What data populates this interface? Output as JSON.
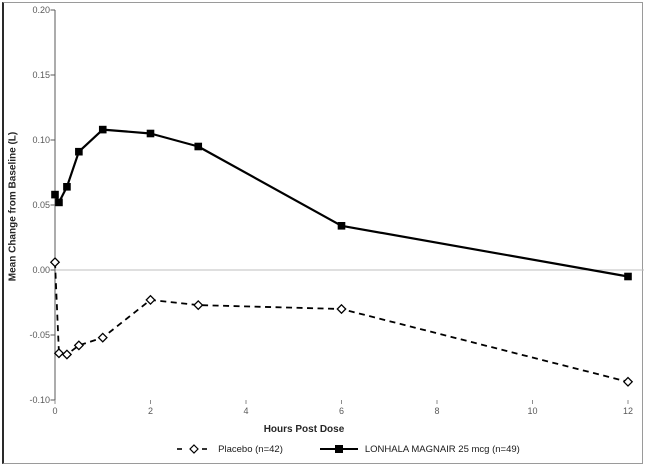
{
  "chart_data": {
    "type": "line",
    "title": "",
    "xlabel": "Hours Post Dose",
    "ylabel": "Mean Change from Baseline (L)",
    "xlim": [
      0,
      12.4
    ],
    "ylim": [
      -0.1,
      0.2
    ],
    "grid": "zero-line-only",
    "legend_position": "bottom-center",
    "x_tick_values": [
      0,
      2,
      4,
      6,
      8,
      10,
      12
    ],
    "x_tick_labels": [
      "0",
      "2",
      "4",
      "6",
      "8",
      "10",
      "12"
    ],
    "y_tick_values": [
      0.2,
      0.15,
      0.1,
      0.05,
      0.0,
      -0.05,
      -0.1
    ],
    "y_tick_labels": [
      "0.20",
      "0.15",
      "0.10",
      "0.05",
      "0.00",
      "-0.05",
      "-0.10"
    ],
    "x": [
      0,
      0.083,
      0.25,
      0.5,
      1,
      2,
      3,
      6,
      12
    ],
    "series": [
      {
        "name": "Placebo (n=42)",
        "line": "dashed",
        "marker": "diamond-open",
        "values": [
          0.006,
          -0.064,
          -0.065,
          -0.058,
          -0.052,
          -0.023,
          -0.027,
          -0.03,
          -0.086
        ]
      },
      {
        "name": "LONHALA MAGNAIR 25 mcg (n=49)",
        "line": "solid",
        "marker": "square-filled",
        "values": [
          0.058,
          0.052,
          0.064,
          0.091,
          0.108,
          0.105,
          0.095,
          0.034,
          -0.005
        ]
      }
    ]
  },
  "colors": {
    "series": "#000000",
    "zero_line": "#bfbfbf",
    "axis_line": "#595959",
    "x_tick": "#8c8c8c",
    "tick_label": "#595959",
    "axis_title": "#262626",
    "frame": "#9a9a9a",
    "marker_fill_open": "#ffffff"
  }
}
